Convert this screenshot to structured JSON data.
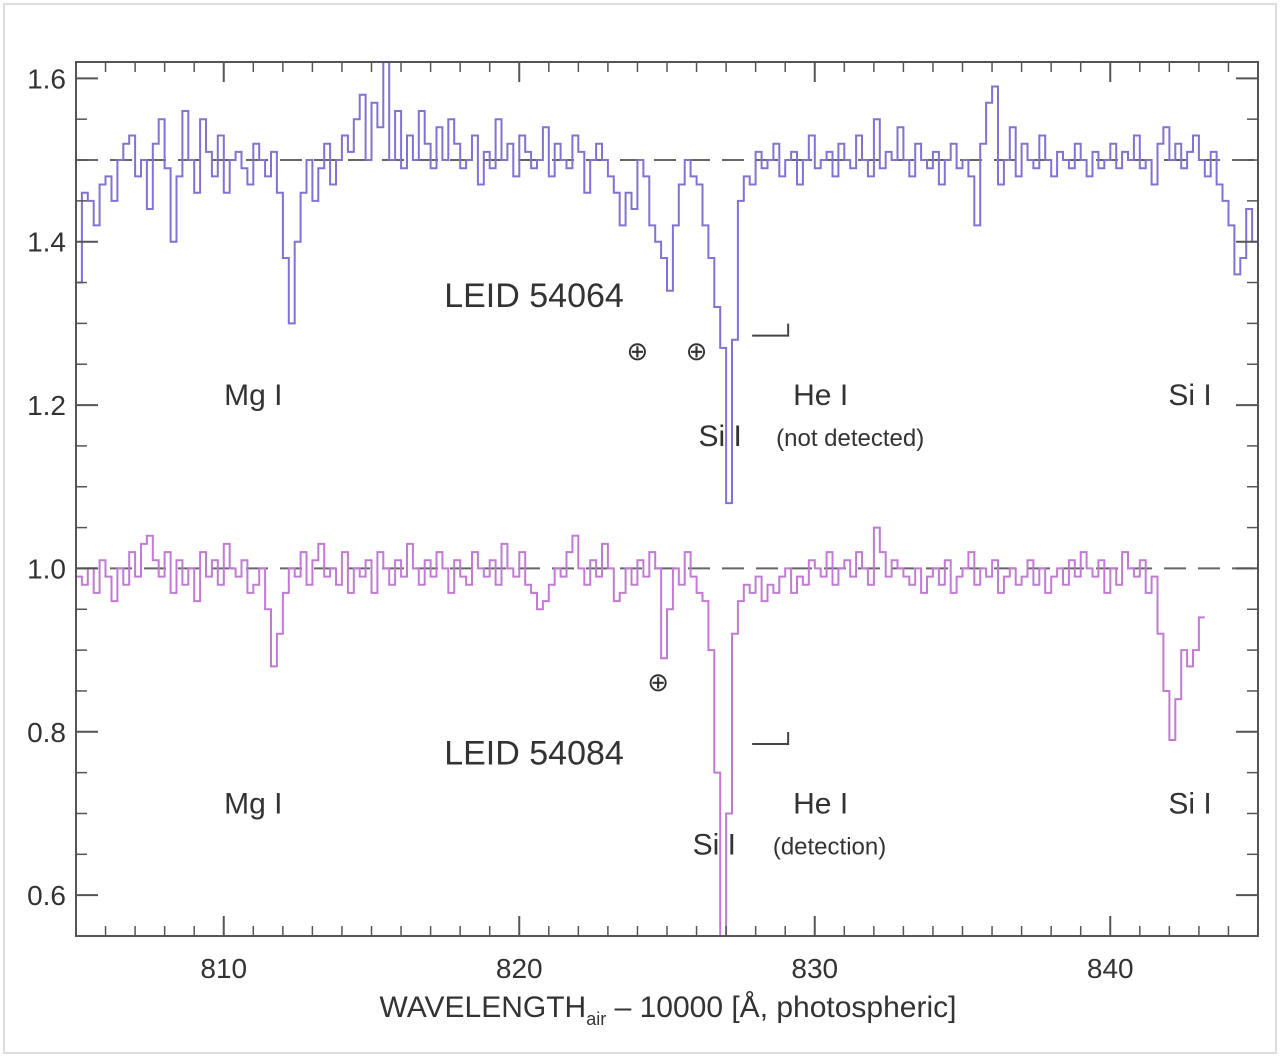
{
  "chart_data": {
    "type": "line",
    "xlabel_main": "WAVELENGTH",
    "xlabel_sub": "air",
    "xlabel_rest": " – 10000 [Å, photospheric]",
    "ylabel": "",
    "xlim": [
      805,
      845
    ],
    "ylim": [
      0.55,
      1.62
    ],
    "x_ticks": [
      810,
      820,
      830,
      840
    ],
    "x_tick_labels": [
      "810",
      "820",
      "830",
      "840"
    ],
    "y_ticks": [
      0.6,
      0.8,
      1.0,
      1.2,
      1.4,
      1.6
    ],
    "y_tick_labels": [
      "0.6",
      "0.8",
      "1.0",
      "1.2",
      "1.4",
      "1.6"
    ],
    "reference_lines": [
      1.5,
      1.0
    ],
    "series": [
      {
        "name": "LEID 54064",
        "color": "#7f73d6",
        "x_start": 805,
        "step": 0.2,
        "values": [
          1.35,
          1.46,
          1.45,
          1.42,
          1.47,
          1.48,
          1.45,
          1.5,
          1.52,
          1.53,
          1.48,
          1.5,
          1.44,
          1.52,
          1.55,
          1.49,
          1.4,
          1.48,
          1.56,
          1.5,
          1.46,
          1.55,
          1.51,
          1.48,
          1.53,
          1.46,
          1.5,
          1.51,
          1.49,
          1.47,
          1.52,
          1.5,
          1.48,
          1.51,
          1.46,
          1.38,
          1.3,
          1.4,
          1.46,
          1.5,
          1.45,
          1.49,
          1.52,
          1.47,
          1.5,
          1.53,
          1.51,
          1.55,
          1.58,
          1.5,
          1.57,
          1.54,
          1.62,
          1.5,
          1.56,
          1.49,
          1.53,
          1.5,
          1.56,
          1.52,
          1.49,
          1.54,
          1.5,
          1.55,
          1.52,
          1.49,
          1.5,
          1.53,
          1.47,
          1.51,
          1.49,
          1.55,
          1.5,
          1.52,
          1.48,
          1.53,
          1.51,
          1.49,
          1.5,
          1.54,
          1.48,
          1.52,
          1.5,
          1.49,
          1.53,
          1.51,
          1.46,
          1.5,
          1.52,
          1.5,
          1.48,
          1.46,
          1.42,
          1.46,
          1.44,
          1.5,
          1.48,
          1.42,
          1.4,
          1.38,
          1.34,
          1.42,
          1.47,
          1.5,
          1.48,
          1.47,
          1.42,
          1.38,
          1.32,
          1.27,
          1.08,
          1.28,
          1.45,
          1.48,
          1.47,
          1.51,
          1.49,
          1.5,
          1.52,
          1.48,
          1.5,
          1.51,
          1.47,
          1.5,
          1.53,
          1.49,
          1.5,
          1.51,
          1.48,
          1.52,
          1.5,
          1.49,
          1.53,
          1.5,
          1.48,
          1.55,
          1.49,
          1.51,
          1.5,
          1.54,
          1.5,
          1.48,
          1.52,
          1.5,
          1.49,
          1.51,
          1.47,
          1.5,
          1.52,
          1.49,
          1.5,
          1.48,
          1.42,
          1.52,
          1.57,
          1.59,
          1.47,
          1.5,
          1.54,
          1.48,
          1.52,
          1.5,
          1.49,
          1.53,
          1.5,
          1.48,
          1.51,
          1.5,
          1.49,
          1.52,
          1.5,
          1.48,
          1.51,
          1.49,
          1.5,
          1.52,
          1.49,
          1.51,
          1.5,
          1.53,
          1.49,
          1.5,
          1.47,
          1.52,
          1.54,
          1.5,
          1.52,
          1.49,
          1.51,
          1.53,
          1.5,
          1.48,
          1.51,
          1.47,
          1.45,
          1.42,
          1.36,
          1.38,
          1.44,
          1.4,
          1.4
        ]
      },
      {
        "name": "LEID 54084",
        "color": "#c27ad6",
        "x_start": 805,
        "step": 0.2,
        "values": [
          0.99,
          0.98,
          1.0,
          0.97,
          1.01,
          0.99,
          0.96,
          1.0,
          0.98,
          1.02,
          0.99,
          1.03,
          1.04,
          1.01,
          0.99,
          1.02,
          0.97,
          1.01,
          0.98,
          1.0,
          0.96,
          1.02,
          0.99,
          1.01,
          0.98,
          1.03,
          1.0,
          0.99,
          1.01,
          0.97,
          0.98,
          1.0,
          0.95,
          0.88,
          0.92,
          0.97,
          1.0,
          0.99,
          1.02,
          0.98,
          1.01,
          1.03,
          0.99,
          1.0,
          0.98,
          1.02,
          0.97,
          1.0,
          0.99,
          1.01,
          0.97,
          1.02,
          1.0,
          0.98,
          1.01,
          0.99,
          1.03,
          1.0,
          0.98,
          1.01,
          0.99,
          1.02,
          1.0,
          0.97,
          1.01,
          0.99,
          0.98,
          1.02,
          1.0,
          0.99,
          1.01,
          0.98,
          1.03,
          1.0,
          0.99,
          1.02,
          0.98,
          0.97,
          0.95,
          0.96,
          0.98,
          1.0,
          0.99,
          1.02,
          1.04,
          1.0,
          0.98,
          1.01,
          0.99,
          1.03,
          1.0,
          0.96,
          0.97,
          1.0,
          0.98,
          1.01,
          0.99,
          1.02,
          1.0,
          0.89,
          0.95,
          1.0,
          0.98,
          1.02,
          0.99,
          0.97,
          0.96,
          0.9,
          0.75,
          0.55,
          0.7,
          0.92,
          0.96,
          0.98,
          0.97,
          0.99,
          0.96,
          0.98,
          0.97,
          0.99,
          1.0,
          0.97,
          0.99,
          0.98,
          1.01,
          1.0,
          0.99,
          1.02,
          0.98,
          1.0,
          1.01,
          0.99,
          1.02,
          1.0,
          0.98,
          1.05,
          1.02,
          0.99,
          1.01,
          1.0,
          0.99,
          0.98,
          1.0,
          0.97,
          0.99,
          1.0,
          0.98,
          1.01,
          0.97,
          0.99,
          1.0,
          1.02,
          0.98,
          1.0,
          0.99,
          1.01,
          0.97,
          0.99,
          1.0,
          0.98,
          0.99,
          1.01,
          0.98,
          1.0,
          0.97,
          0.99,
          1.0,
          0.98,
          1.01,
          0.99,
          1.02,
          1.0,
          0.99,
          1.01,
          0.97,
          1.0,
          0.98,
          1.02,
          1.0,
          0.99,
          1.01,
          0.97,
          0.99,
          0.92,
          0.85,
          0.79,
          0.84,
          0.9,
          0.88,
          0.9,
          0.94
        ]
      }
    ],
    "annotations": [
      {
        "text": "LEID 54064",
        "x": 820.5,
        "y": 1.32,
        "size": "large"
      },
      {
        "text": "Mg I",
        "x": 811.0,
        "y": 1.2,
        "size": "medium"
      },
      {
        "text": "Si I",
        "x": 826.8,
        "y": 1.15,
        "size": "medium"
      },
      {
        "text": "He I",
        "x": 830.2,
        "y": 1.2,
        "size": "medium"
      },
      {
        "text": "(not detected)",
        "x": 831.2,
        "y": 1.15,
        "size": "small"
      },
      {
        "text": "Si I",
        "x": 842.7,
        "y": 1.2,
        "size": "medium"
      },
      {
        "text": "LEID 54084",
        "x": 820.5,
        "y": 0.76,
        "size": "large"
      },
      {
        "text": "Mg I",
        "x": 811.0,
        "y": 0.7,
        "size": "medium"
      },
      {
        "text": "Si I",
        "x": 826.6,
        "y": 0.65,
        "size": "medium"
      },
      {
        "text": "He I",
        "x": 830.2,
        "y": 0.7,
        "size": "medium"
      },
      {
        "text": "(detection)",
        "x": 830.5,
        "y": 0.65,
        "size": "small"
      },
      {
        "text": "Si I",
        "x": 842.7,
        "y": 0.7,
        "size": "medium"
      }
    ],
    "telluric_markers": [
      {
        "symbol": "⊕",
        "x": 824.0,
        "y": 1.255
      },
      {
        "symbol": "⊕",
        "x": 826.0,
        "y": 1.255
      },
      {
        "symbol": "⊕",
        "x": 824.7,
        "y": 0.85
      }
    ],
    "he_markers": [
      {
        "x": 829.1,
        "y": 1.285
      },
      {
        "x": 829.1,
        "y": 0.785
      }
    ],
    "grid": false,
    "legend": "none"
  }
}
